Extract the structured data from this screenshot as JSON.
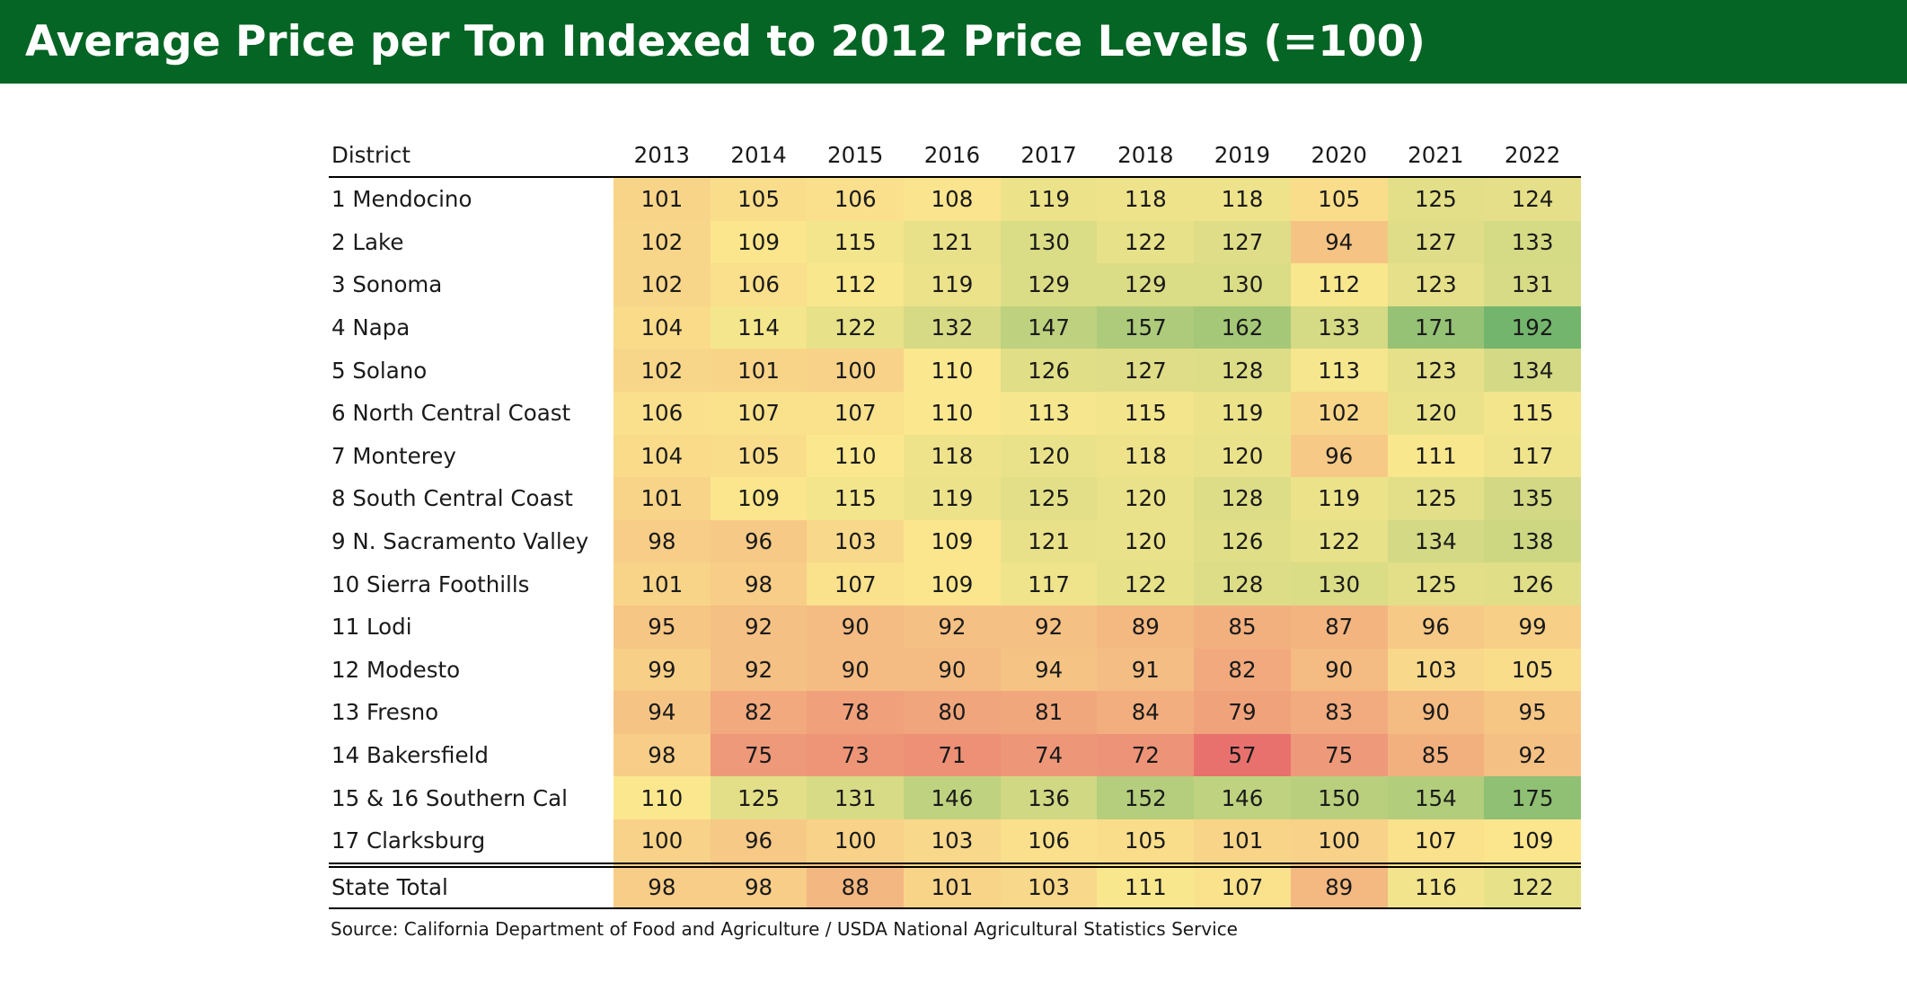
{
  "title": "Average Price per Ton Indexed to 2012 Price Levels (=100)",
  "source": "Source: California Department of Food and Agriculture / USDA National Agricultural Statistics Service",
  "colors": {
    "header_bar": "#046524",
    "scale_low": "#e8716e",
    "scale_mid": "#fbe88e",
    "scale_high": "#73b56c"
  },
  "chart_data": {
    "type": "heatmap",
    "title": "Average Price per Ton Indexed to 2012 Price Levels (=100)",
    "row_header": "District",
    "columns": [
      "2013",
      "2014",
      "2015",
      "2016",
      "2017",
      "2018",
      "2019",
      "2020",
      "2021",
      "2022"
    ],
    "rows": [
      {
        "label": "1 Mendocino",
        "values": [
          101,
          105,
          106,
          108,
          119,
          118,
          118,
          105,
          125,
          124
        ]
      },
      {
        "label": "2 Lake",
        "values": [
          102,
          109,
          115,
          121,
          130,
          122,
          127,
          94,
          127,
          133
        ]
      },
      {
        "label": "3 Sonoma",
        "values": [
          102,
          106,
          112,
          119,
          129,
          129,
          130,
          112,
          123,
          131
        ]
      },
      {
        "label": "4 Napa",
        "values": [
          104,
          114,
          122,
          132,
          147,
          157,
          162,
          133,
          171,
          192
        ]
      },
      {
        "label": "5 Solano",
        "values": [
          102,
          101,
          100,
          110,
          126,
          127,
          128,
          113,
          123,
          134
        ]
      },
      {
        "label": "6 North Central Coast",
        "values": [
          106,
          107,
          107,
          110,
          113,
          115,
          119,
          102,
          120,
          115
        ]
      },
      {
        "label": "7 Monterey",
        "values": [
          104,
          105,
          110,
          118,
          120,
          118,
          120,
          96,
          111,
          117
        ]
      },
      {
        "label": "8 South Central Coast",
        "values": [
          101,
          109,
          115,
          119,
          125,
          120,
          128,
          119,
          125,
          135
        ]
      },
      {
        "label": "9 N. Sacramento Valley",
        "values": [
          98,
          96,
          103,
          109,
          121,
          120,
          126,
          122,
          134,
          138
        ]
      },
      {
        "label": "10 Sierra Foothills",
        "values": [
          101,
          98,
          107,
          109,
          117,
          122,
          128,
          130,
          125,
          126
        ]
      },
      {
        "label": "11 Lodi",
        "values": [
          95,
          92,
          90,
          92,
          92,
          89,
          85,
          87,
          96,
          99
        ]
      },
      {
        "label": "12 Modesto",
        "values": [
          99,
          92,
          90,
          90,
          94,
          91,
          82,
          90,
          103,
          105
        ]
      },
      {
        "label": "13 Fresno",
        "values": [
          94,
          82,
          78,
          80,
          81,
          84,
          79,
          83,
          90,
          95
        ]
      },
      {
        "label": "14 Bakersfield",
        "values": [
          98,
          75,
          73,
          71,
          74,
          72,
          57,
          75,
          85,
          92
        ]
      },
      {
        "label": "15 & 16 Southern Cal",
        "values": [
          110,
          125,
          131,
          146,
          136,
          152,
          146,
          150,
          154,
          175
        ]
      },
      {
        "label": "17 Clarksburg",
        "values": [
          100,
          96,
          100,
          103,
          106,
          105,
          101,
          100,
          107,
          109
        ]
      }
    ],
    "total_row": {
      "label": "State Total",
      "values": [
        98,
        98,
        88,
        101,
        103,
        111,
        107,
        89,
        116,
        122
      ]
    },
    "color_scale": {
      "min": 57,
      "mid": 110,
      "max": 192
    }
  }
}
